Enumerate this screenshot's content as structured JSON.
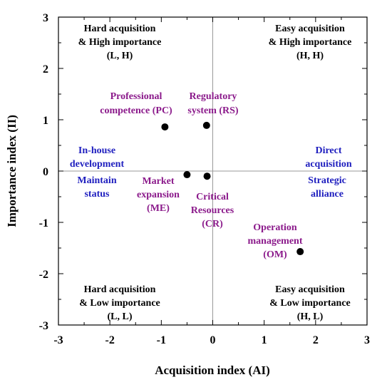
{
  "chart_data": {
    "type": "scatter",
    "title": "",
    "xlabel": "Acquisition index (AI)",
    "ylabel": "Importance index (II)",
    "xlim": [
      -3,
      3
    ],
    "ylim": [
      -3,
      3
    ],
    "x_ticks": [
      "-3",
      "-2",
      "-1",
      "0",
      "1",
      "2",
      "3"
    ],
    "y_ticks": [
      "3",
      "2",
      "1",
      "0",
      "-1",
      "-2",
      "-3"
    ],
    "grid": false,
    "points": [
      {
        "id": "PC",
        "x": -0.93,
        "y": 0.86
      },
      {
        "id": "RS",
        "x": -0.12,
        "y": 0.89
      },
      {
        "id": "ME",
        "x": -0.5,
        "y": -0.07
      },
      {
        "id": "CR",
        "x": -0.11,
        "y": -0.1
      },
      {
        "id": "OM",
        "x": 1.7,
        "y": -1.57
      }
    ],
    "point_color": "#000000",
    "quadrant_labels": {
      "top_left": [
        "Hard acquisition",
        "& High importance",
        "(L, H)"
      ],
      "top_right": [
        "Easy acquisition",
        "& High importance",
        "(H, H)"
      ],
      "bottom_left": [
        "Hard acquisition",
        "& Low importance",
        "(L, L)"
      ],
      "bottom_right": [
        "Easy acquisition",
        "& Low importance",
        "(H, L)"
      ],
      "color": "#000000"
    },
    "strategy_labels": {
      "left_upper": [
        "In-house",
        "development"
      ],
      "left_lower": [
        "Maintain",
        "status"
      ],
      "right_upper": [
        "Direct",
        "acquisition"
      ],
      "right_lower": [
        "Strategic",
        "alliance"
      ],
      "color": "#1f1fbf"
    },
    "point_labels": {
      "PC": [
        "Professional",
        "competence (PC)"
      ],
      "RS": [
        "Regulatory",
        "system (RS)"
      ],
      "ME": [
        "Market",
        "expansion",
        "(ME)"
      ],
      "CR": [
        "Critical",
        "Resources",
        "(CR)"
      ],
      "OM": [
        "Operation",
        "management",
        "(OM)"
      ],
      "color": "#8b1a8b"
    }
  }
}
